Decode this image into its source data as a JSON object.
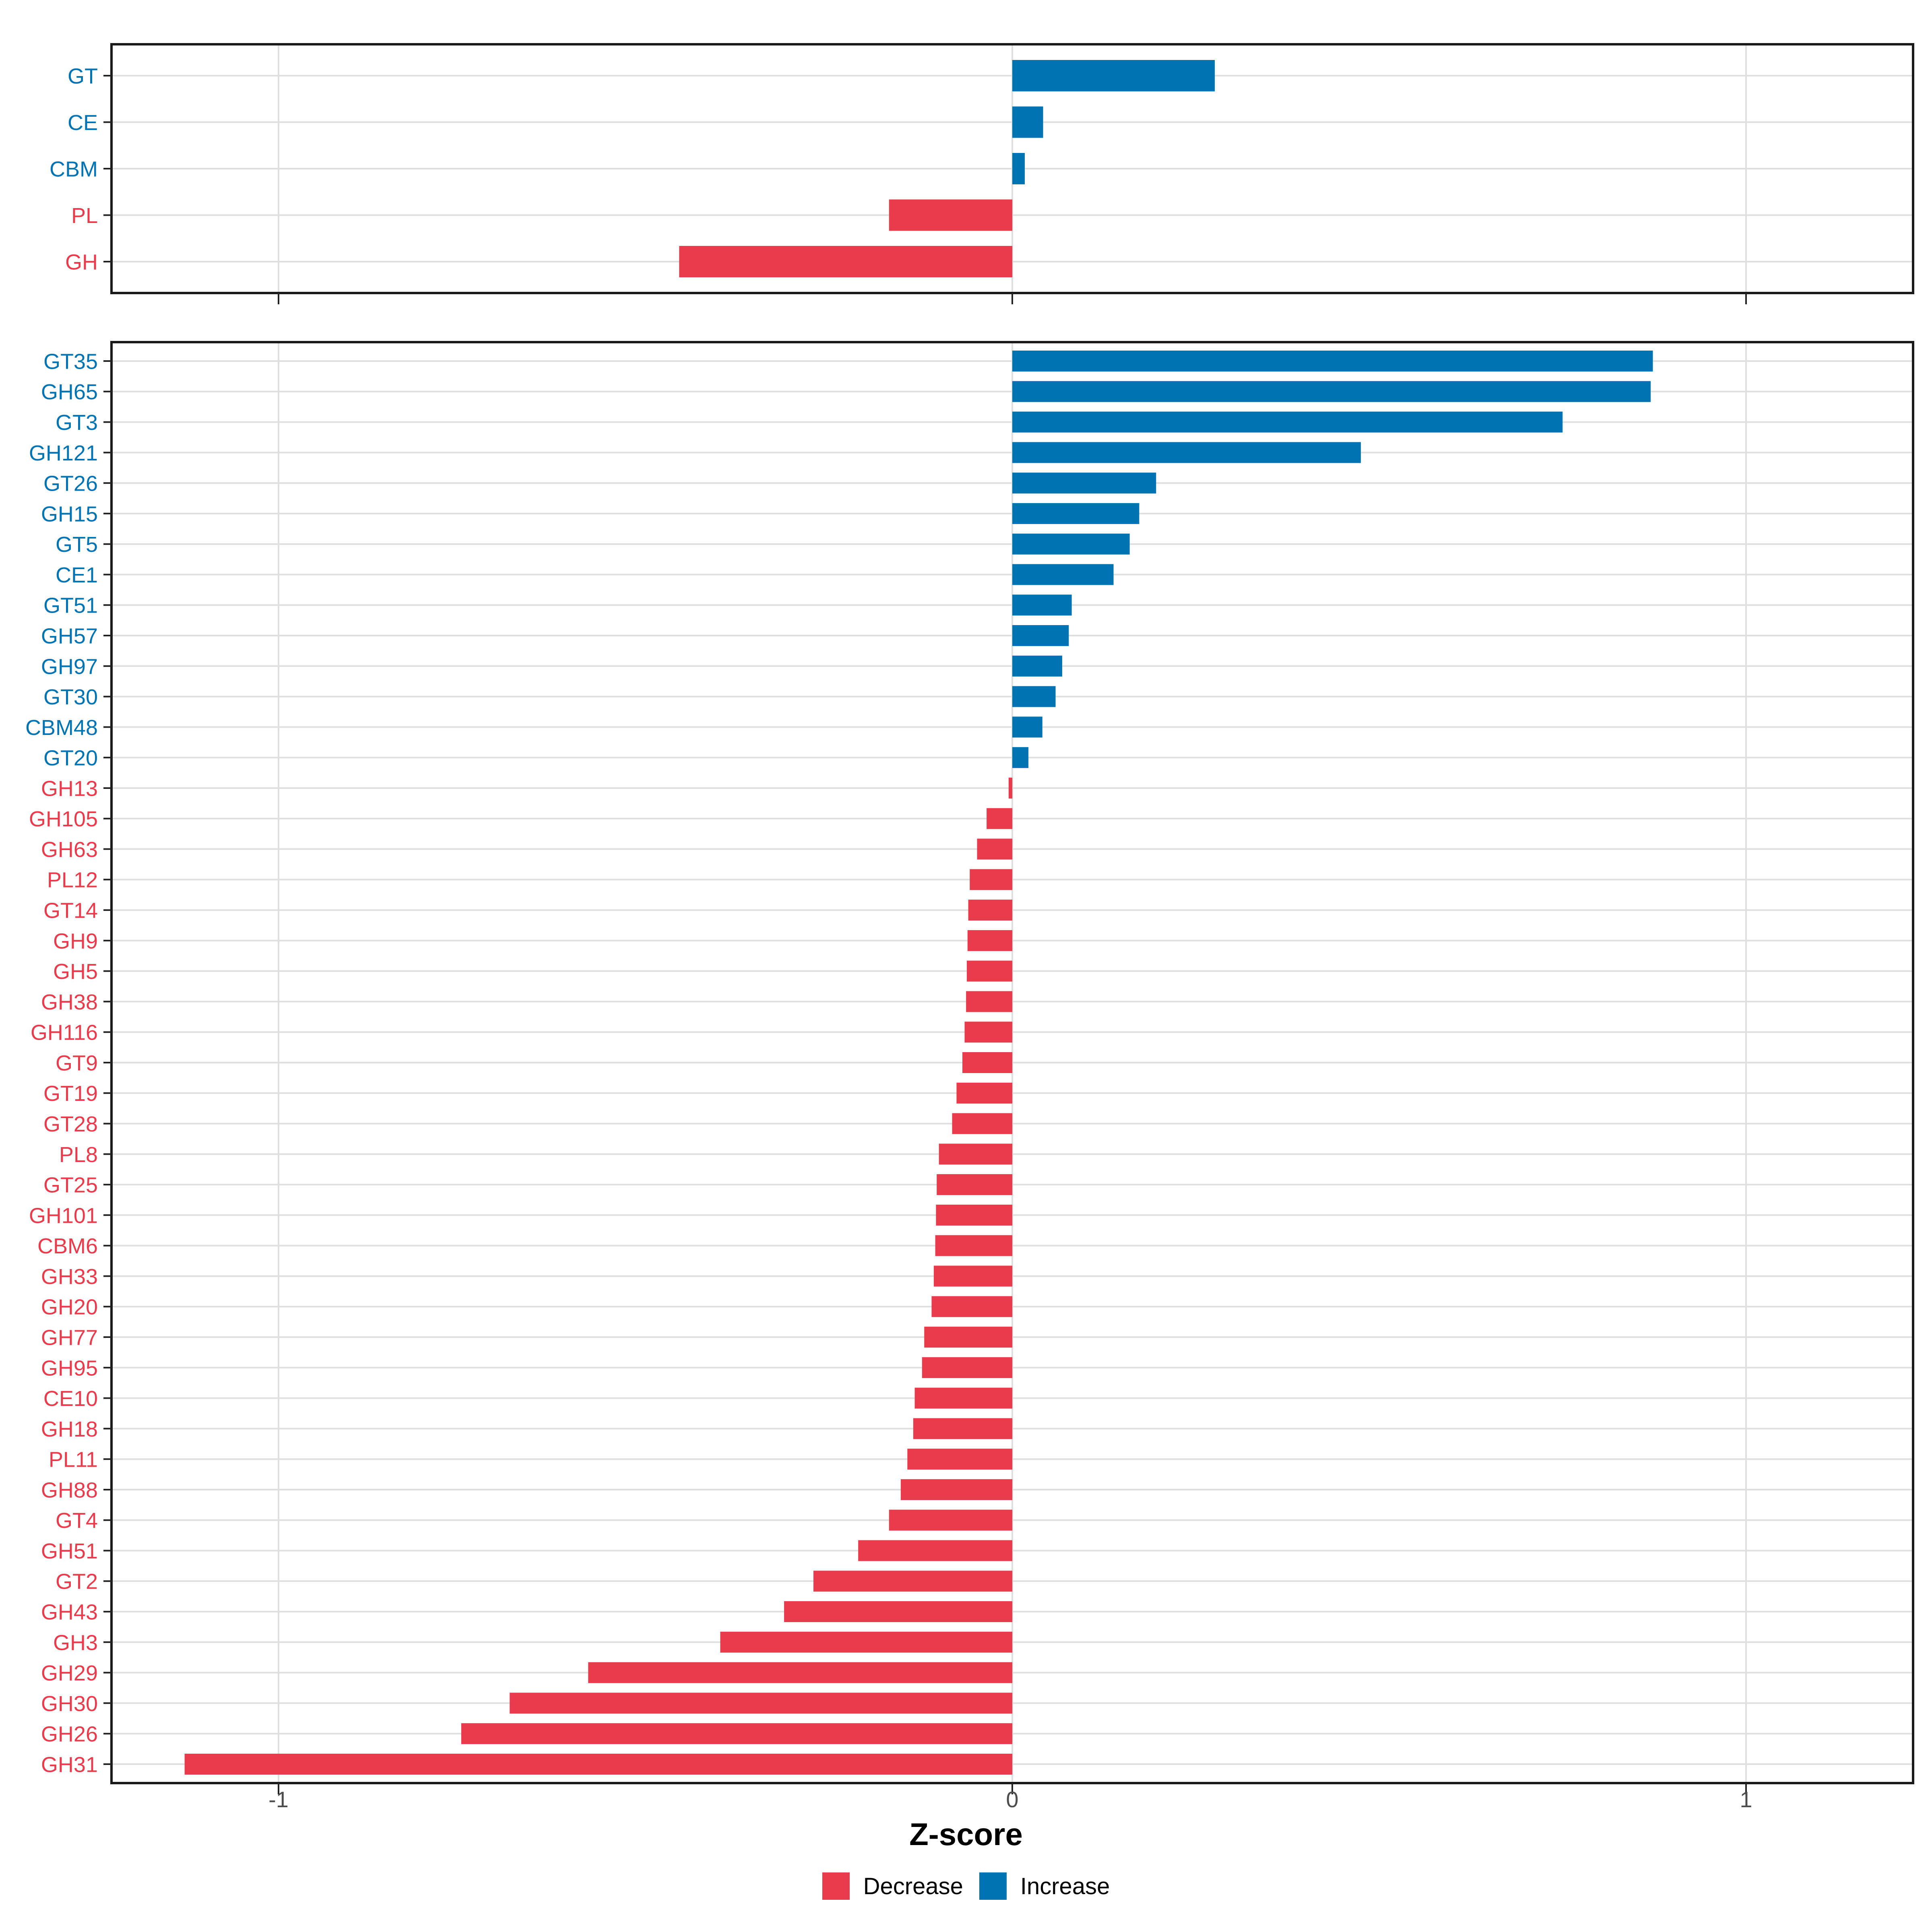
{
  "xlabel": "Z-score",
  "x_ticks": [
    -1,
    0,
    1
  ],
  "legend": [
    {
      "label": "Decrease",
      "color": "#E83C4C"
    },
    {
      "label": "Increase",
      "color": "#0073B2"
    }
  ],
  "colors": {
    "increase": "#0073B2",
    "decrease": "#E83C4C",
    "grid": "#DFDFDF",
    "border": "#1A1A1A",
    "tick_text": "#4d4d4d"
  },
  "chart_data": [
    {
      "type": "bar",
      "orientation": "horizontal",
      "panel": "cazyme-class-summary",
      "categories": [
        "GT",
        "CE",
        "CBM",
        "PL",
        "GH"
      ],
      "values": [
        0.276,
        0.042,
        0.017,
        -0.168,
        -0.454
      ],
      "xlabel": "Z-score",
      "xlim": [
        -1.228,
        1.228
      ],
      "grid": true,
      "legend_position": "none"
    },
    {
      "type": "bar",
      "orientation": "horizontal",
      "panel": "cazyme-family-detail",
      "categories": [
        "GT35",
        "GH65",
        "GT3",
        "GH121",
        "GT26",
        "GH15",
        "GT5",
        "CE1",
        "GT51",
        "GH57",
        "GH97",
        "GT30",
        "CBM48",
        "GT20",
        "GH13",
        "GH105",
        "GH63",
        "PL12",
        "GT14",
        "GH9",
        "GH5",
        "GH38",
        "GH116",
        "GT9",
        "GT19",
        "GT28",
        "PL8",
        "GT25",
        "GH101",
        "CBM6",
        "GH33",
        "GH20",
        "GH77",
        "GH95",
        "CE10",
        "GH18",
        "PL11",
        "GH88",
        "GT4",
        "GH51",
        "GT2",
        "GH43",
        "GH3",
        "GH29",
        "GH30",
        "GH26",
        "GH31"
      ],
      "values": [
        0.873,
        0.87,
        0.75,
        0.475,
        0.196,
        0.173,
        0.16,
        0.138,
        0.081,
        0.077,
        0.068,
        0.059,
        0.041,
        0.022,
        -0.005,
        -0.035,
        -0.048,
        -0.058,
        -0.06,
        -0.061,
        -0.062,
        -0.063,
        -0.065,
        -0.068,
        -0.076,
        -0.082,
        -0.1,
        -0.103,
        -0.104,
        -0.105,
        -0.107,
        -0.11,
        -0.12,
        -0.123,
        -0.133,
        -0.135,
        -0.143,
        -0.152,
        -0.168,
        -0.21,
        -0.271,
        -0.311,
        -0.398,
        -0.578,
        -0.685,
        -0.751,
        -1.128
      ],
      "xlabel": "Z-score",
      "xlim": [
        -1.228,
        1.228
      ],
      "grid": true,
      "legend_position": "bottom"
    }
  ]
}
